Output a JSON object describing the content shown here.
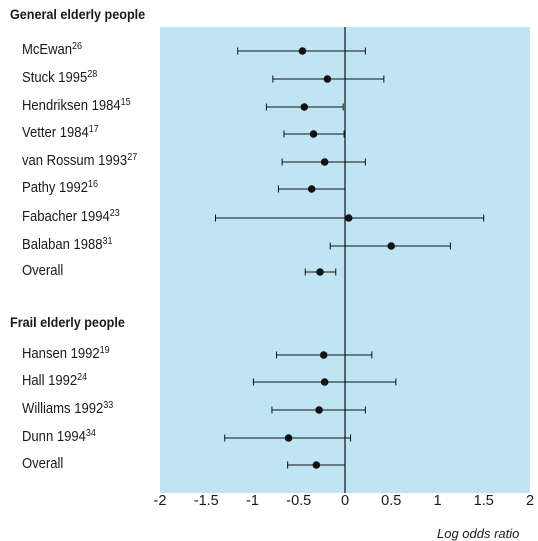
{
  "chart_data": {
    "type": "forest",
    "title": "",
    "xlabel": "Log odds ratio",
    "xlim": [
      -2,
      2
    ],
    "xticks": [
      "-2",
      "-1.5",
      "-1",
      "-0.5",
      "0",
      "0.5",
      "1",
      "1.5",
      "2"
    ],
    "reference_line": 0,
    "background": "#bfe4f4",
    "groups": [
      {
        "name": "General elderly people",
        "studies": [
          {
            "label": "McEwan",
            "ref": "26",
            "estimate": -0.46,
            "lower": -1.16,
            "upper": 0.22
          },
          {
            "label": "Stuck 1995",
            "ref": "28",
            "estimate": -0.19,
            "lower": -0.78,
            "upper": 0.42
          },
          {
            "label": "Hendriksen 1984",
            "ref": "15",
            "estimate": -0.44,
            "lower": -0.85,
            "upper": -0.02
          },
          {
            "label": "Vetter 1984",
            "ref": "17",
            "estimate": -0.34,
            "lower": -0.66,
            "upper": -0.01
          },
          {
            "label": "van Rossum 1993",
            "ref": "27",
            "estimate": -0.22,
            "lower": -0.68,
            "upper": 0.22
          },
          {
            "label": "Pathy 1992",
            "ref": "16",
            "estimate": -0.36,
            "lower": -0.72,
            "upper": 0.0
          },
          {
            "label": "Fabacher 1994",
            "ref": "23",
            "estimate": 0.04,
            "lower": -1.4,
            "upper": 1.5
          },
          {
            "label": "Balaban 1988",
            "ref": "31",
            "estimate": 0.5,
            "lower": -0.16,
            "upper": 1.14
          },
          {
            "label": "Overall",
            "ref": "",
            "estimate": -0.27,
            "lower": -0.43,
            "upper": -0.1
          }
        ]
      },
      {
        "name": "Frail elderly people",
        "studies": [
          {
            "label": "Hansen 1992",
            "ref": "19",
            "estimate": -0.23,
            "lower": -0.74,
            "upper": 0.29
          },
          {
            "label": "Hall 1992",
            "ref": "24",
            "estimate": -0.22,
            "lower": -0.99,
            "upper": 0.55
          },
          {
            "label": "Williams 1992",
            "ref": "33",
            "estimate": -0.28,
            "lower": -0.79,
            "upper": 0.22
          },
          {
            "label": "Dunn 1994",
            "ref": "34",
            "estimate": -0.61,
            "lower": -1.3,
            "upper": 0.06
          },
          {
            "label": "Overall",
            "ref": "",
            "estimate": -0.31,
            "lower": -0.62,
            "upper": 0.0
          }
        ]
      }
    ]
  }
}
